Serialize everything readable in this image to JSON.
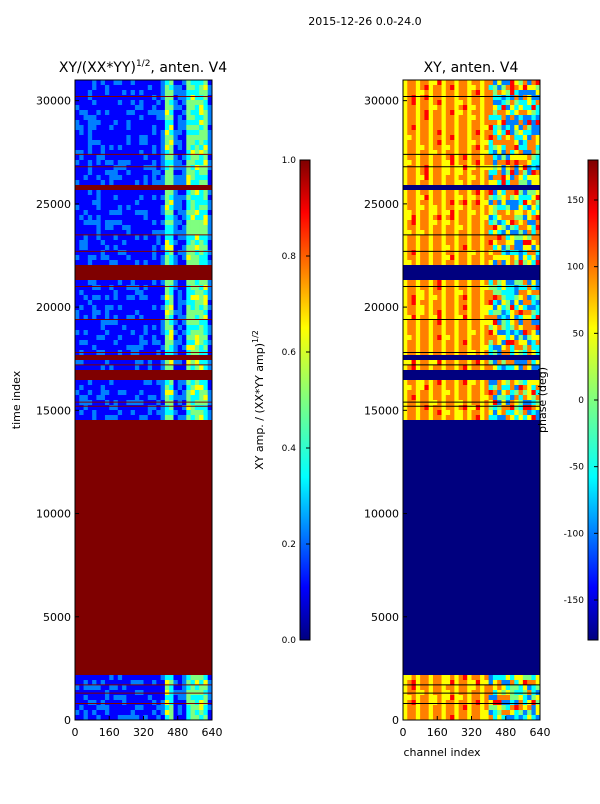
{
  "figure": {
    "suptitle": "2015-12-26 0.0-24.0"
  },
  "chart_data": [
    {
      "type": "heatmap",
      "title_main": "XY/(XX*YY)",
      "title_sup": "1/2",
      "title_rest": ", anten. V4",
      "xlabel": "",
      "ylabel": "time index",
      "xlim": [
        0,
        640
      ],
      "ylim": [
        0,
        31000
      ],
      "xticks": [
        0,
        160,
        320,
        480,
        640
      ],
      "yticks": [
        0,
        5000,
        10000,
        15000,
        20000,
        25000,
        30000
      ],
      "colormap": "jet",
      "colorbar": {
        "label_main": "XY amp. / (XX*YY amp)",
        "label_sup": "1/2",
        "range": [
          0,
          1
        ],
        "ticks": [
          0.0,
          0.2,
          0.4,
          0.6,
          0.8,
          1.0
        ]
      },
      "saturated_time_bands": [
        [
          2200,
          14600
        ],
        [
          14900,
          15000
        ],
        [
          16500,
          16900
        ],
        [
          17500,
          17600
        ],
        [
          21400,
          22000
        ],
        [
          25600,
          26000
        ]
      ],
      "active_channel_range": [
        400,
        640
      ],
      "horizontal_lines": [
        800,
        1300,
        1700,
        15200,
        15400,
        17200,
        17800,
        19400,
        21000,
        22700,
        23500,
        26800,
        27400,
        30200
      ]
    },
    {
      "type": "heatmap",
      "title_main": "XY, anten. V4",
      "title_sup": "",
      "title_rest": "",
      "xlabel": "channel index",
      "ylabel": "",
      "xlim": [
        0,
        640
      ],
      "ylim": [
        0,
        31000
      ],
      "xticks": [
        0,
        160,
        320,
        480,
        640
      ],
      "yticks": [
        0,
        5000,
        10000,
        15000,
        20000,
        25000,
        30000
      ],
      "colormap": "jet",
      "colorbar": {
        "label_main": "phase (deg)",
        "label_sup": "",
        "range": [
          -180,
          180
        ],
        "ticks": [
          -150,
          -100,
          -50,
          0,
          50,
          100,
          150
        ]
      },
      "saturated_time_bands": [
        [
          2200,
          14600
        ],
        [
          14900,
          15000
        ],
        [
          16500,
          16900
        ],
        [
          17500,
          17600
        ],
        [
          21400,
          22000
        ],
        [
          25600,
          26000
        ]
      ],
      "active_channel_range": [
        400,
        640
      ],
      "horizontal_lines": [
        800,
        1300,
        1700,
        15200,
        15400,
        17200,
        17800,
        19400,
        21000,
        22700,
        23500,
        26800,
        27400,
        30200
      ]
    }
  ],
  "colors": {
    "jet": [
      "#00007f",
      "#0000ff",
      "#007fff",
      "#00ffff",
      "#7fff7f",
      "#ffff00",
      "#ff7f00",
      "#ff0000",
      "#7f0000"
    ]
  }
}
